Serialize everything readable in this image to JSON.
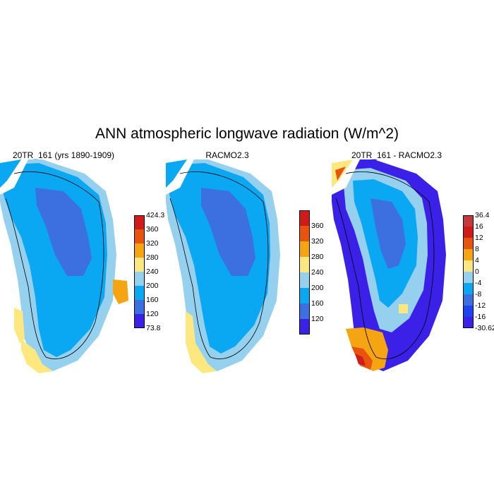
{
  "title": "ANN atmospheric longwave radiation (W/m^2)",
  "panels": [
    {
      "title": "20TR_161 (yrs 1890-1909)",
      "colorbar": {
        "colors": [
          "#3b20e8",
          "#3c6fe0",
          "#0aa7f2",
          "#95d1ee",
          "#fde880",
          "#f5a511",
          "#e8540d",
          "#d11a1a"
        ],
        "labels": [
          "73.8",
          "120",
          "160",
          "200",
          "240",
          "280",
          "320",
          "360",
          "424.3"
        ]
      }
    },
    {
      "title": "RACMO2.3",
      "colorbar": {
        "colors": [
          "#3b20e8",
          "#3c6fe0",
          "#0aa7f2",
          "#95d1ee",
          "#fde880",
          "#f5a511",
          "#e8540d",
          "#d11a1a"
        ],
        "labels": [
          "",
          "120",
          "160",
          "200",
          "240",
          "280",
          "320",
          "360",
          ""
        ]
      }
    },
    {
      "title": "20TR_161 - RACMO2.3",
      "colorbar": {
        "colors": [
          "#3b20e8",
          "#1f43f0",
          "#3c6fe0",
          "#0aa7f2",
          "#95d1ee",
          "#fde880",
          "#f5a511",
          "#e8540d",
          "#d11a1a",
          "#c23a3a"
        ],
        "labels": [
          "-30.62",
          "-16",
          "-12",
          "-8",
          "-4",
          "0",
          "4",
          "8",
          "12",
          "16",
          "36.4"
        ]
      }
    }
  ]
}
